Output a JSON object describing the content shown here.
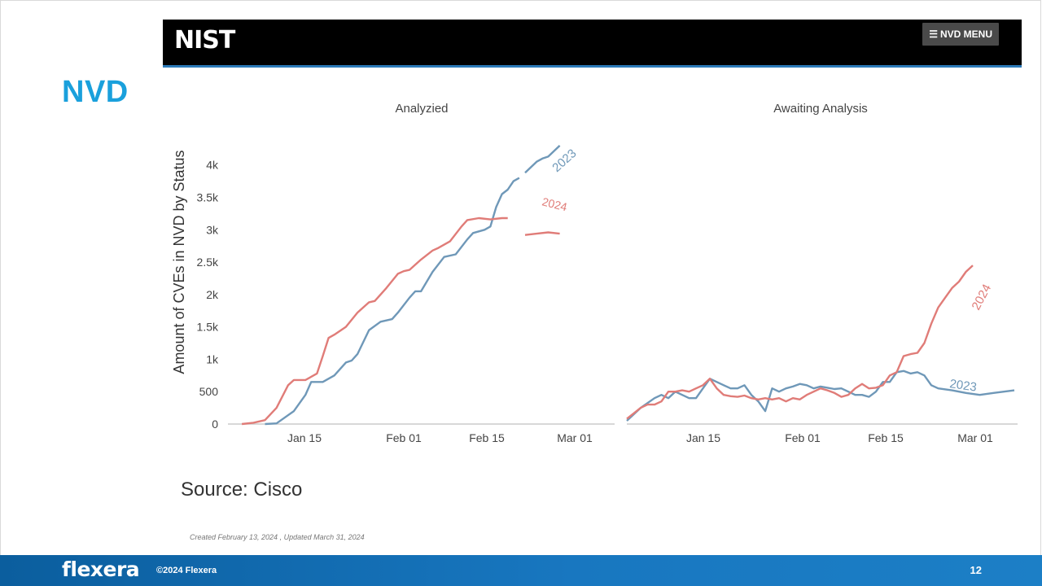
{
  "slide": {
    "title": "NVD",
    "source": "Source: Cisco",
    "created_note": "Created February 13, 2024 , Updated March 31, 2024"
  },
  "header": {
    "logo": "NIST",
    "menu_label": "NVD MENU"
  },
  "footer": {
    "logo": "flexera",
    "copyright": "©2024 Flexera",
    "page_number": "12"
  },
  "colors": {
    "series_2023": "#6f98b8",
    "series_2024": "#e07c78",
    "title_accent": "#1aa0dc",
    "footer_blue": "#1570b8"
  },
  "chart_data": [
    {
      "type": "line",
      "title": "Analyzied",
      "ylabel": "Amount of CVEs in NVD by Status",
      "ylim": [
        0,
        4300
      ],
      "yticks": [
        0,
        500,
        1000,
        1500,
        2000,
        2500,
        3000,
        3500,
        4000
      ],
      "ytick_labels": [
        "0",
        "500",
        "1k",
        "1.5k",
        "2k",
        "2.5k",
        "3k",
        "3.5k",
        "4k"
      ],
      "xlim": [
        "Jan 01",
        "Mar 10"
      ],
      "xticks": [
        "Jan 15",
        "Feb 01",
        "Feb 15",
        "Mar 01"
      ],
      "grid": false,
      "series": [
        {
          "name": "2023",
          "points": [
            [
              5,
              0
            ],
            [
              7,
              10
            ],
            [
              10,
              200
            ],
            [
              12,
              450
            ],
            [
              13,
              650
            ],
            [
              15,
              650
            ],
            [
              17,
              750
            ],
            [
              19,
              950
            ],
            [
              20,
              980
            ],
            [
              21,
              1080
            ],
            [
              23,
              1450
            ],
            [
              25,
              1580
            ],
            [
              26,
              1600
            ],
            [
              27,
              1620
            ],
            [
              28,
              1720
            ],
            [
              30,
              1950
            ],
            [
              31,
              2050
            ],
            [
              32,
              2050
            ],
            [
              34,
              2350
            ],
            [
              36,
              2580
            ],
            [
              38,
              2620
            ],
            [
              40,
              2850
            ],
            [
              41,
              2950
            ],
            [
              43,
              3000
            ],
            [
              44,
              3050
            ],
            [
              45,
              3350
            ],
            [
              46,
              3550
            ],
            [
              47,
              3620
            ],
            [
              48,
              3750
            ],
            [
              49,
              3800
            ],
            [
              50,
              3880
            ],
            [
              52,
              4050
            ],
            [
              53,
              4100
            ],
            [
              54,
              4130
            ],
            [
              56,
              4300
            ]
          ]
        },
        {
          "name": "2024",
          "points": [
            [
              1,
              0
            ],
            [
              3,
              20
            ],
            [
              5,
              60
            ],
            [
              7,
              250
            ],
            [
              9,
              600
            ],
            [
              10,
              680
            ],
            [
              12,
              680
            ],
            [
              14,
              780
            ],
            [
              15,
              1050
            ],
            [
              16,
              1330
            ],
            [
              17,
              1380
            ],
            [
              19,
              1500
            ],
            [
              21,
              1720
            ],
            [
              23,
              1880
            ],
            [
              24,
              1900
            ],
            [
              26,
              2100
            ],
            [
              28,
              2320
            ],
            [
              29,
              2360
            ],
            [
              30,
              2380
            ],
            [
              32,
              2540
            ],
            [
              34,
              2680
            ],
            [
              35,
              2720
            ],
            [
              37,
              2820
            ],
            [
              39,
              3050
            ],
            [
              40,
              3150
            ],
            [
              42,
              3180
            ],
            [
              44,
              3160
            ],
            [
              46,
              3180
            ],
            [
              47,
              3180
            ],
            [
              50,
              2920
            ],
            [
              52,
              2940
            ],
            [
              54,
              2960
            ],
            [
              56,
              2940
            ]
          ]
        }
      ],
      "annotations": [
        "2023",
        "2024"
      ]
    },
    {
      "type": "line",
      "title": "Awaiting Analysis",
      "ylim": [
        0,
        4300
      ],
      "xlim": [
        "Jan 01",
        "Mar 10"
      ],
      "xticks": [
        "Jan 15",
        "Feb 01",
        "Feb 15",
        "Mar 01"
      ],
      "grid": false,
      "series": [
        {
          "name": "2023",
          "points": [
            [
              0,
              50
            ],
            [
              2,
              250
            ],
            [
              4,
              400
            ],
            [
              5,
              450
            ],
            [
              6,
              400
            ],
            [
              7,
              500
            ],
            [
              8,
              450
            ],
            [
              9,
              400
            ],
            [
              10,
              400
            ],
            [
              11,
              550
            ],
            [
              12,
              700
            ],
            [
              13,
              650
            ],
            [
              14,
              600
            ],
            [
              15,
              550
            ],
            [
              16,
              550
            ],
            [
              17,
              600
            ],
            [
              18,
              450
            ],
            [
              19,
              350
            ],
            [
              20,
              200
            ],
            [
              21,
              550
            ],
            [
              22,
              500
            ],
            [
              23,
              550
            ],
            [
              24,
              580
            ],
            [
              25,
              620
            ],
            [
              26,
              600
            ],
            [
              27,
              550
            ],
            [
              28,
              580
            ],
            [
              29,
              560
            ],
            [
              30,
              540
            ],
            [
              31,
              550
            ],
            [
              32,
              500
            ],
            [
              33,
              450
            ],
            [
              34,
              450
            ],
            [
              35,
              420
            ],
            [
              36,
              500
            ],
            [
              37,
              650
            ],
            [
              38,
              650
            ],
            [
              39,
              800
            ],
            [
              40,
              820
            ],
            [
              41,
              780
            ],
            [
              42,
              800
            ],
            [
              43,
              750
            ],
            [
              44,
              600
            ],
            [
              45,
              550
            ],
            [
              47,
              520
            ],
            [
              49,
              480
            ],
            [
              51,
              450
            ],
            [
              53,
              480
            ],
            [
              56,
              520
            ]
          ]
        },
        {
          "name": "2024",
          "points": [
            [
              0,
              80
            ],
            [
              2,
              250
            ],
            [
              3,
              300
            ],
            [
              4,
              300
            ],
            [
              5,
              350
            ],
            [
              6,
              500
            ],
            [
              7,
              500
            ],
            [
              8,
              520
            ],
            [
              9,
              500
            ],
            [
              10,
              550
            ],
            [
              11,
              600
            ],
            [
              12,
              700
            ],
            [
              13,
              550
            ],
            [
              14,
              450
            ],
            [
              15,
              430
            ],
            [
              16,
              420
            ],
            [
              17,
              440
            ],
            [
              18,
              400
            ],
            [
              19,
              380
            ],
            [
              20,
              400
            ],
            [
              21,
              380
            ],
            [
              22,
              400
            ],
            [
              23,
              350
            ],
            [
              24,
              400
            ],
            [
              25,
              380
            ],
            [
              26,
              450
            ],
            [
              27,
              500
            ],
            [
              28,
              550
            ],
            [
              29,
              520
            ],
            [
              30,
              480
            ],
            [
              31,
              420
            ],
            [
              32,
              450
            ],
            [
              33,
              550
            ],
            [
              34,
              620
            ],
            [
              35,
              550
            ],
            [
              36,
              560
            ],
            [
              37,
              600
            ],
            [
              38,
              750
            ],
            [
              39,
              800
            ],
            [
              40,
              1050
            ],
            [
              41,
              1080
            ],
            [
              42,
              1100
            ],
            [
              43,
              1250
            ],
            [
              44,
              1550
            ],
            [
              45,
              1800
            ],
            [
              46,
              1950
            ],
            [
              47,
              2100
            ],
            [
              48,
              2200
            ],
            [
              49,
              2350
            ],
            [
              50,
              2450
            ]
          ]
        }
      ],
      "annotations": [
        "2024",
        "2023"
      ]
    }
  ]
}
